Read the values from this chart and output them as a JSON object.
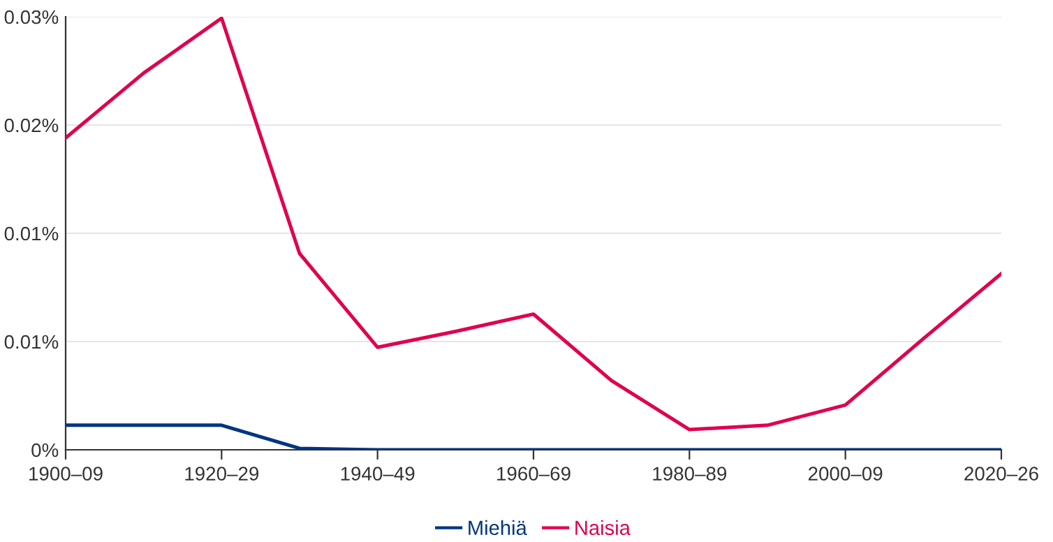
{
  "chart_data": {
    "type": "line",
    "categories": [
      "1900–09",
      null,
      "1920–29",
      null,
      "1940–49",
      null,
      "1960–69",
      null,
      "1980–89",
      null,
      "2000–09",
      null,
      "2020–26"
    ],
    "series": [
      {
        "name": "Miehiä",
        "color": "#003580",
        "values": [
          0.0017,
          0.0017,
          0.0017,
          0.0001,
          0,
          0,
          0,
          0,
          0,
          0,
          0,
          0,
          0
        ]
      },
      {
        "name": "Naisia",
        "color": "#e0004d",
        "values": [
          0.0216,
          0.0261,
          0.0299,
          0.0136,
          0.0071,
          0.0082,
          0.0094,
          0.0048,
          0.0014,
          0.0017,
          0.0031,
          0.0077,
          0.0122
        ]
      }
    ],
    "ylim": [
      0,
      0.03
    ],
    "yticks": [
      {
        "value": 0,
        "label": "0%"
      },
      {
        "value": 0.0075,
        "label": "0.01%"
      },
      {
        "value": 0.015,
        "label": "0.01%"
      },
      {
        "value": 0.0225,
        "label": "0.02%"
      },
      {
        "value": 0.03,
        "label": "0.03%"
      }
    ],
    "grid": "y",
    "legend": "bottom",
    "line_style": "solid"
  }
}
